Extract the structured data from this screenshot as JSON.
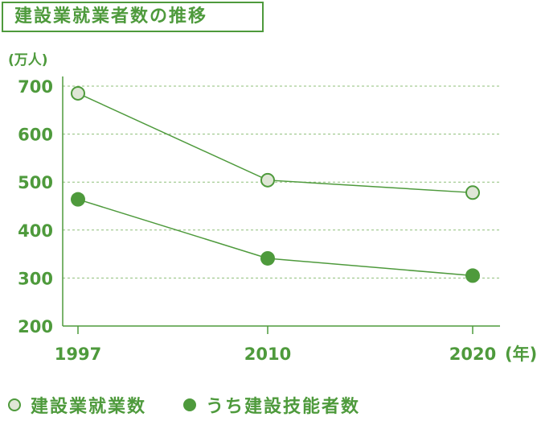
{
  "header": {
    "title": "建設業就業者数の推移"
  },
  "chart_data": {
    "type": "line",
    "ylabel": "(万人)",
    "xunit": "(年)",
    "categories": [
      "1997",
      "2010",
      "2020"
    ],
    "ylim": [
      200,
      700
    ],
    "yticks": [
      "200",
      "300",
      "400",
      "500",
      "600",
      "700"
    ],
    "grid": true,
    "series": [
      {
        "name": "建設業就業数",
        "values": [
          685,
          504,
          478
        ],
        "marker": "open-circle"
      },
      {
        "name": "うち建設技能者数",
        "values": [
          464,
          341,
          305
        ],
        "marker": "filled-circle"
      }
    ],
    "legend_position": "bottom",
    "colors": {
      "line": "#4e9a3c",
      "grid": "#8fbf7a",
      "open_fill": "#dfe6d6"
    }
  }
}
